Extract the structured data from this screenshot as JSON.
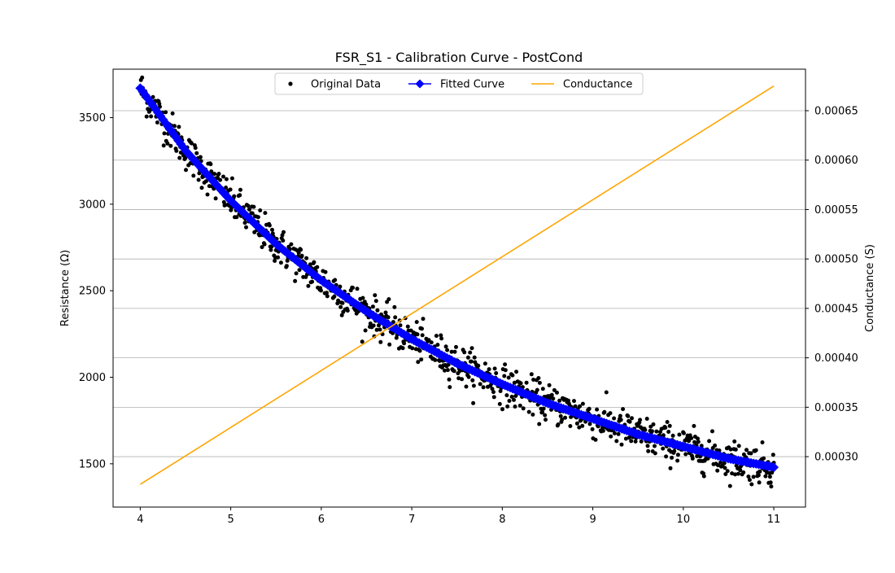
{
  "chart_data": {
    "type": "scatter",
    "title": "FSR_S1 - Calibration Curve - PostCond",
    "xlabel": "",
    "ylabel": "Resistance (Ω)",
    "y2label": "Conductance (S)",
    "xlim": [
      3.7,
      11.35
    ],
    "ylim": [
      1250,
      3780
    ],
    "y2lim": [
      0.000249,
      0.000692
    ],
    "xticks": [
      "4",
      "5",
      "6",
      "7",
      "8",
      "9",
      "10",
      "11"
    ],
    "yticks": [
      "1500",
      "2000",
      "2500",
      "3000",
      "3500"
    ],
    "y2ticks": [
      "0.00030",
      "0.00035",
      "0.00040",
      "0.00045",
      "0.00050",
      "0.00055",
      "0.00060",
      "0.00065"
    ],
    "grid": "horizontal, right axis",
    "legend_position": "top-center",
    "legend": [
      "Original Data",
      "Fitted Curve",
      "Conductance"
    ],
    "series": [
      {
        "name": "Original Data",
        "kind": "scatter",
        "color": "#000000",
        "n_points": 1000,
        "x_range": [
          4.0,
          11.0
        ],
        "noise_std_ohm": 55,
        "note_shape": "noisy samples around the fitted curve"
      },
      {
        "name": "Fitted Curve",
        "kind": "line-markers",
        "color": "#0000ff",
        "x": [
          4.0,
          4.5,
          5.0,
          5.5,
          6.0,
          6.5,
          7.0,
          7.5,
          8.0,
          8.5,
          9.0,
          9.5,
          10.0,
          10.5,
          11.0
        ],
        "y": [
          3670,
          3310,
          3020,
          2770,
          2560,
          2380,
          2220,
          2080,
          1960,
          1850,
          1760,
          1670,
          1600,
          1530,
          1480
        ]
      },
      {
        "name": "Conductance",
        "kind": "line",
        "axis": "right",
        "color": "#ffa500",
        "x": [
          4.0,
          11.0
        ],
        "y": [
          0.000272,
          0.000675
        ]
      }
    ]
  }
}
